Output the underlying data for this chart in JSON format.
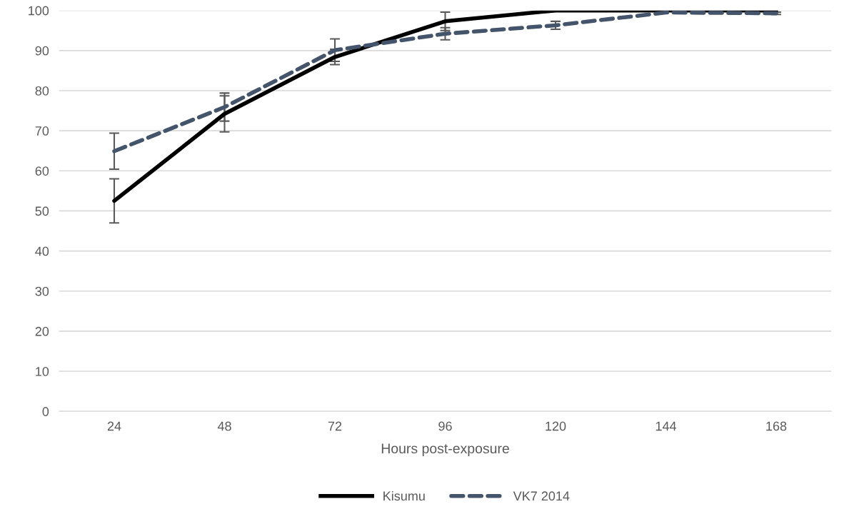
{
  "chart_data": {
    "type": "line",
    "xlabel": "Hours post-exposure",
    "categories": [
      "24",
      "48",
      "72",
      "96",
      "120",
      "144",
      "168"
    ],
    "series": [
      {
        "name": "Kisumu",
        "color": "#000000",
        "line_style": "solid",
        "values": [
          52.5,
          74.2,
          88.4,
          97.3,
          100,
          100,
          100
        ],
        "errors": [
          5.5,
          4.5,
          1.9,
          2.3,
          null,
          null,
          null
        ]
      },
      {
        "name": "VK7 2014",
        "color": "#44546a",
        "line_style": "dashed",
        "values": [
          64.9,
          75.9,
          90.1,
          94.2,
          96.3,
          99.5,
          99.3
        ],
        "errors": [
          4.5,
          3.5,
          2.8,
          1.5,
          1.0,
          null,
          0.3
        ]
      }
    ],
    "ylim": [
      0,
      100
    ],
    "yticks": [
      0,
      10,
      20,
      30,
      40,
      50,
      60,
      70,
      80,
      90,
      100
    ],
    "grid": "y",
    "legend": "bottom",
    "marker": "none"
  }
}
